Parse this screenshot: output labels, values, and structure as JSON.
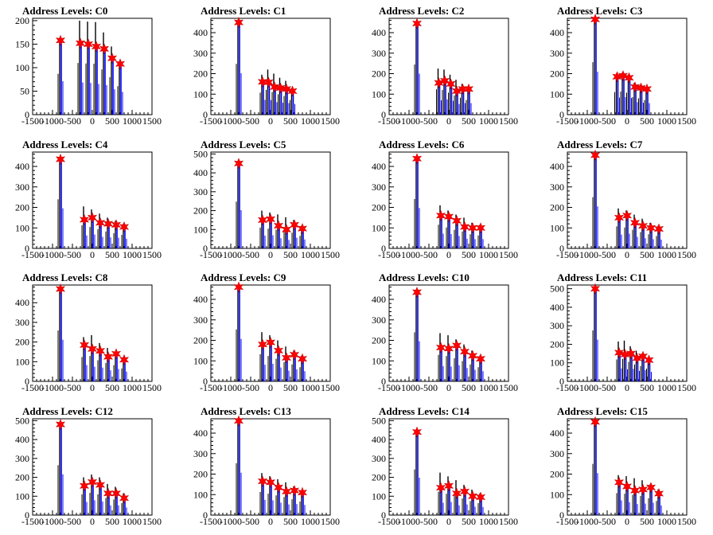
{
  "chart_data": {
    "type": "bar",
    "title_prefix": "Address Levels: ",
    "xlim": [
      -1500,
      1500
    ],
    "x_tick_labels": [
      "-1500",
      "-1000",
      "-500",
      "0",
      "500",
      "1000",
      "1500"
    ],
    "colors": {
      "histogram": "#000000",
      "fit": "#0000ff",
      "marker": "#ff0000",
      "axis": "#000000",
      "background": "#ffffff"
    },
    "panels": [
      {
        "title": "Address Levels: C0",
        "ylim": [
          0,
          205
        ],
        "y_ticks": [
          0,
          50,
          100,
          150,
          200
        ],
        "peaks": [
          {
            "x": -800,
            "y": 158,
            "h": 158
          },
          {
            "x": -300,
            "y": 152,
            "h": 200
          },
          {
            "x": -100,
            "y": 150,
            "h": 198
          },
          {
            "x": 100,
            "y": 145,
            "h": 197
          },
          {
            "x": 300,
            "y": 140,
            "h": 175
          },
          {
            "x": 500,
            "y": 120,
            "h": 145
          },
          {
            "x": 700,
            "y": 108,
            "h": 110
          }
        ]
      },
      {
        "title": "Address Levels: C1",
        "ylim": [
          0,
          470
        ],
        "y_ticks": [
          0,
          100,
          200,
          300,
          400
        ],
        "peaks": [
          {
            "x": -800,
            "y": 450,
            "h": 450
          },
          {
            "x": -200,
            "y": 160,
            "h": 195
          },
          {
            "x": -50,
            "y": 158,
            "h": 220
          },
          {
            "x": 100,
            "y": 135,
            "h": 200
          },
          {
            "x": 250,
            "y": 130,
            "h": 180
          },
          {
            "x": 400,
            "y": 125,
            "h": 165
          },
          {
            "x": 550,
            "y": 115,
            "h": 130
          }
        ]
      },
      {
        "title": "Address Levels: C2",
        "ylim": [
          0,
          470
        ],
        "y_ticks": [
          0,
          100,
          200,
          300,
          400
        ],
        "peaks": [
          {
            "x": -800,
            "y": 445,
            "h": 445
          },
          {
            "x": -250,
            "y": 155,
            "h": 225
          },
          {
            "x": -100,
            "y": 165,
            "h": 220
          },
          {
            "x": 50,
            "y": 150,
            "h": 195
          },
          {
            "x": 200,
            "y": 115,
            "h": 170
          },
          {
            "x": 350,
            "y": 125,
            "h": 150
          },
          {
            "x": 500,
            "y": 125,
            "h": 130
          }
        ]
      },
      {
        "title": "Address Levels: C3",
        "ylim": [
          0,
          470
        ],
        "y_ticks": [
          0,
          100,
          200,
          300,
          400
        ],
        "peaks": [
          {
            "x": -800,
            "y": 465,
            "h": 465
          },
          {
            "x": -250,
            "y": 185,
            "h": 200
          },
          {
            "x": -100,
            "y": 190,
            "h": 205
          },
          {
            "x": 50,
            "y": 180,
            "h": 195
          },
          {
            "x": 200,
            "y": 135,
            "h": 155
          },
          {
            "x": 350,
            "y": 130,
            "h": 145
          },
          {
            "x": 500,
            "y": 125,
            "h": 130
          }
        ]
      },
      {
        "title": "Address Levels: C4",
        "ylim": [
          0,
          470
        ],
        "y_ticks": [
          0,
          100,
          200,
          300,
          400
        ],
        "peaks": [
          {
            "x": -800,
            "y": 435,
            "h": 435
          },
          {
            "x": -200,
            "y": 140,
            "h": 205
          },
          {
            "x": 0,
            "y": 150,
            "h": 190
          },
          {
            "x": 200,
            "y": 125,
            "h": 170
          },
          {
            "x": 400,
            "y": 120,
            "h": 150
          },
          {
            "x": 600,
            "y": 115,
            "h": 135
          },
          {
            "x": 800,
            "y": 105,
            "h": 120
          }
        ]
      },
      {
        "title": "Address Levels: C5",
        "ylim": [
          0,
          510
        ],
        "y_ticks": [
          0,
          100,
          200,
          300,
          400,
          500
        ],
        "peaks": [
          {
            "x": -800,
            "y": 450,
            "h": 450
          },
          {
            "x": -200,
            "y": 150,
            "h": 200
          },
          {
            "x": 0,
            "y": 155,
            "h": 190
          },
          {
            "x": 200,
            "y": 120,
            "h": 180
          },
          {
            "x": 400,
            "y": 100,
            "h": 165
          },
          {
            "x": 600,
            "y": 125,
            "h": 150
          },
          {
            "x": 800,
            "y": 105,
            "h": 120
          }
        ]
      },
      {
        "title": "Address Levels: C6",
        "ylim": [
          0,
          470
        ],
        "y_ticks": [
          0,
          100,
          200,
          300,
          400
        ],
        "peaks": [
          {
            "x": -800,
            "y": 438,
            "h": 438
          },
          {
            "x": -200,
            "y": 160,
            "h": 210
          },
          {
            "x": 0,
            "y": 155,
            "h": 185
          },
          {
            "x": 200,
            "y": 135,
            "h": 165
          },
          {
            "x": 400,
            "y": 105,
            "h": 150
          },
          {
            "x": 600,
            "y": 100,
            "h": 125
          },
          {
            "x": 800,
            "y": 100,
            "h": 115
          }
        ]
      },
      {
        "title": "Address Levels: C7",
        "ylim": [
          0,
          470
        ],
        "y_ticks": [
          0,
          100,
          200,
          300,
          400
        ],
        "peaks": [
          {
            "x": -800,
            "y": 455,
            "h": 455
          },
          {
            "x": -200,
            "y": 150,
            "h": 195
          },
          {
            "x": 0,
            "y": 160,
            "h": 185
          },
          {
            "x": 200,
            "y": 125,
            "h": 165
          },
          {
            "x": 400,
            "y": 110,
            "h": 145
          },
          {
            "x": 600,
            "y": 100,
            "h": 125
          },
          {
            "x": 800,
            "y": 95,
            "h": 110
          }
        ]
      },
      {
        "title": "Address Levels: C8",
        "ylim": [
          0,
          490
        ],
        "y_ticks": [
          0,
          100,
          200,
          300,
          400
        ],
        "peaks": [
          {
            "x": -800,
            "y": 470,
            "h": 470
          },
          {
            "x": -200,
            "y": 185,
            "h": 225
          },
          {
            "x": 0,
            "y": 165,
            "h": 235
          },
          {
            "x": 200,
            "y": 155,
            "h": 195
          },
          {
            "x": 400,
            "y": 125,
            "h": 170
          },
          {
            "x": 600,
            "y": 140,
            "h": 150
          },
          {
            "x": 800,
            "y": 110,
            "h": 120
          }
        ]
      },
      {
        "title": "Address Levels: C9",
        "ylim": [
          0,
          470
        ],
        "y_ticks": [
          0,
          100,
          200,
          300,
          400
        ],
        "peaks": [
          {
            "x": -800,
            "y": 460,
            "h": 460
          },
          {
            "x": -200,
            "y": 180,
            "h": 240
          },
          {
            "x": 0,
            "y": 190,
            "h": 225
          },
          {
            "x": 200,
            "y": 150,
            "h": 200
          },
          {
            "x": 400,
            "y": 115,
            "h": 170
          },
          {
            "x": 600,
            "y": 130,
            "h": 150
          },
          {
            "x": 800,
            "y": 110,
            "h": 125
          }
        ]
      },
      {
        "title": "Address Levels: C10",
        "ylim": [
          0,
          470
        ],
        "y_ticks": [
          0,
          100,
          200,
          300,
          400
        ],
        "peaks": [
          {
            "x": -800,
            "y": 435,
            "h": 435
          },
          {
            "x": -200,
            "y": 165,
            "h": 235
          },
          {
            "x": 0,
            "y": 160,
            "h": 225
          },
          {
            "x": 200,
            "y": 175,
            "h": 205
          },
          {
            "x": 400,
            "y": 145,
            "h": 180
          },
          {
            "x": 600,
            "y": 125,
            "h": 150
          },
          {
            "x": 800,
            "y": 110,
            "h": 125
          }
        ]
      },
      {
        "title": "Address Levels: C11",
        "ylim": [
          0,
          520
        ],
        "y_ticks": [
          0,
          100,
          200,
          300,
          400,
          500
        ],
        "peaks": [
          {
            "x": -800,
            "y": 500,
            "h": 500
          },
          {
            "x": -200,
            "y": 155,
            "h": 215
          },
          {
            "x": -50,
            "y": 145,
            "h": 220
          },
          {
            "x": 100,
            "y": 150,
            "h": 190
          },
          {
            "x": 250,
            "y": 125,
            "h": 165
          },
          {
            "x": 400,
            "y": 135,
            "h": 150
          },
          {
            "x": 550,
            "y": 115,
            "h": 125
          }
        ]
      },
      {
        "title": "Address Levels: C12",
        "ylim": [
          0,
          510
        ],
        "y_ticks": [
          0,
          100,
          200,
          300,
          400,
          500
        ],
        "peaks": [
          {
            "x": -800,
            "y": 480,
            "h": 480
          },
          {
            "x": -200,
            "y": 155,
            "h": 200
          },
          {
            "x": 0,
            "y": 175,
            "h": 215
          },
          {
            "x": 200,
            "y": 160,
            "h": 200
          },
          {
            "x": 400,
            "y": 115,
            "h": 165
          },
          {
            "x": 600,
            "y": 115,
            "h": 150
          },
          {
            "x": 800,
            "y": 90,
            "h": 115
          }
        ]
      },
      {
        "title": "Address Levels: C13",
        "ylim": [
          0,
          470
        ],
        "y_ticks": [
          0,
          100,
          200,
          300,
          400
        ],
        "peaks": [
          {
            "x": -800,
            "y": 460,
            "h": 460
          },
          {
            "x": -200,
            "y": 165,
            "h": 205
          },
          {
            "x": 0,
            "y": 160,
            "h": 190
          },
          {
            "x": 200,
            "y": 135,
            "h": 175
          },
          {
            "x": 400,
            "y": 115,
            "h": 160
          },
          {
            "x": 600,
            "y": 120,
            "h": 140
          },
          {
            "x": 800,
            "y": 110,
            "h": 120
          }
        ]
      },
      {
        "title": "Address Levels: C14",
        "ylim": [
          0,
          510
        ],
        "y_ticks": [
          0,
          100,
          200,
          300,
          400,
          500
        ],
        "peaks": [
          {
            "x": -800,
            "y": 440,
            "h": 440
          },
          {
            "x": -200,
            "y": 145,
            "h": 225
          },
          {
            "x": 0,
            "y": 155,
            "h": 205
          },
          {
            "x": 200,
            "y": 115,
            "h": 185
          },
          {
            "x": 400,
            "y": 125,
            "h": 160
          },
          {
            "x": 600,
            "y": 100,
            "h": 135
          },
          {
            "x": 800,
            "y": 95,
            "h": 115
          }
        ]
      },
      {
        "title": "Address Levels: C15",
        "ylim": [
          0,
          470
        ],
        "y_ticks": [
          0,
          100,
          200,
          300,
          400
        ],
        "peaks": [
          {
            "x": -800,
            "y": 455,
            "h": 455
          },
          {
            "x": -200,
            "y": 160,
            "h": 195
          },
          {
            "x": 0,
            "y": 140,
            "h": 190
          },
          {
            "x": 200,
            "y": 120,
            "h": 180
          },
          {
            "x": 400,
            "y": 125,
            "h": 170
          },
          {
            "x": 600,
            "y": 135,
            "h": 150
          },
          {
            "x": 800,
            "y": 105,
            "h": 125
          }
        ]
      }
    ]
  }
}
